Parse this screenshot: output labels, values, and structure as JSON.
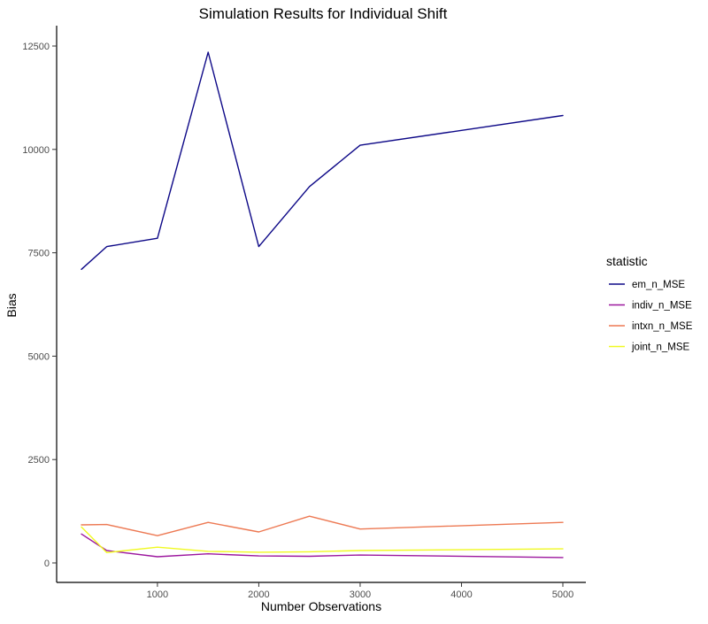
{
  "chart_data": {
    "type": "line",
    "title": "Simulation Results for Individual Shift",
    "xlabel": "Number Observations",
    "ylabel": "Bias",
    "xlim": [
      250,
      5000
    ],
    "ylim": [
      0,
      12500
    ],
    "x_ticks": [
      1000,
      2000,
      3000,
      4000,
      5000
    ],
    "y_ticks": [
      0,
      2500,
      5000,
      7500,
      10000,
      12500
    ],
    "grid": false,
    "legend_title": "statistic",
    "legend_position": "right",
    "x": [
      250,
      500,
      1000,
      1500,
      2000,
      2500,
      3000,
      5000
    ],
    "series": [
      {
        "name": "em_n_MSE",
        "color": "#0D0887",
        "values": [
          7100,
          7650,
          7850,
          12350,
          7650,
          9100,
          10100,
          10820
        ]
      },
      {
        "name": "indiv_n_MSE",
        "color": "#9C179E",
        "values": [
          700,
          300,
          150,
          220,
          170,
          160,
          190,
          130
        ]
      },
      {
        "name": "intxn_n_MSE",
        "color": "#ED7953",
        "values": [
          920,
          930,
          660,
          980,
          750,
          1130,
          820,
          980
        ]
      },
      {
        "name": "joint_n_MSE",
        "color": "#F0F921",
        "values": [
          870,
          250,
          380,
          280,
          260,
          270,
          300,
          340
        ]
      }
    ]
  }
}
